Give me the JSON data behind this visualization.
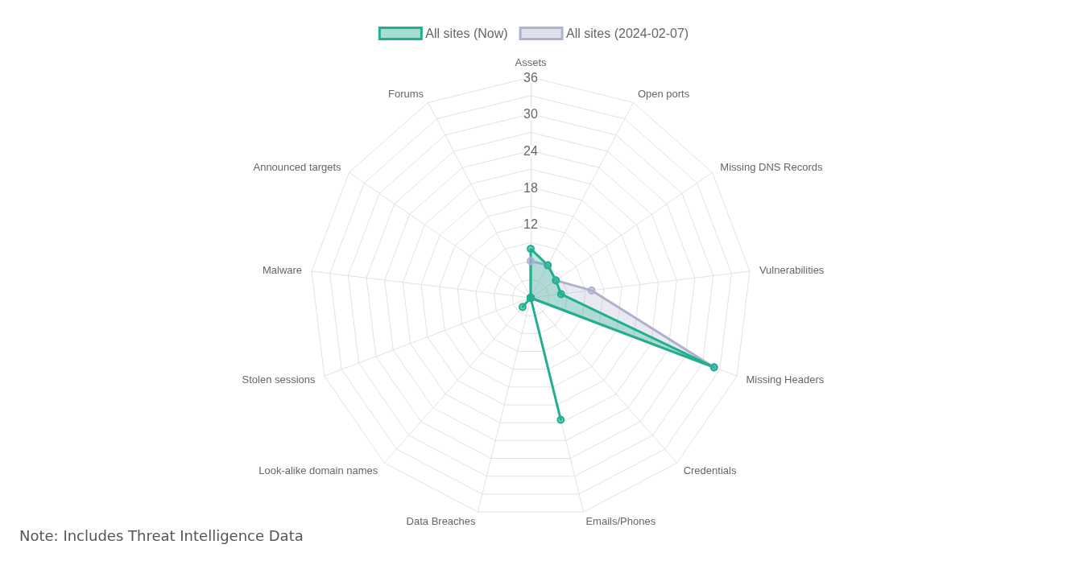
{
  "chart_data": {
    "type": "radar",
    "categories": [
      "Assets",
      "Open ports",
      "Missing DNS Records",
      "Vulnerabilities",
      "Missing Headers",
      "Credentials",
      "Emails/Phones",
      "Data Breaches",
      "Look-alike domain names",
      "Stolen sessions",
      "Malware",
      "Announced targets",
      "Forums"
    ],
    "series": [
      {
        "name": "All sites (Now)",
        "color": "#20b08f",
        "values": [
          8,
          6,
          5,
          5,
          32,
          0,
          20.5,
          0,
          2,
          0,
          0,
          0,
          0
        ]
      },
      {
        "name": "All sites (2024-02-07)",
        "color": "#b0b1cf",
        "values": [
          6,
          6,
          5,
          10,
          32,
          0,
          0,
          0,
          0,
          0,
          0,
          0,
          0
        ]
      }
    ],
    "ylim": [
      0,
      36
    ],
    "yticks": [
      12,
      18,
      24,
      30,
      36
    ],
    "legend": "top",
    "marker": "circle",
    "annotations": [
      "Note: Includes Threat Intelligence Data"
    ]
  }
}
